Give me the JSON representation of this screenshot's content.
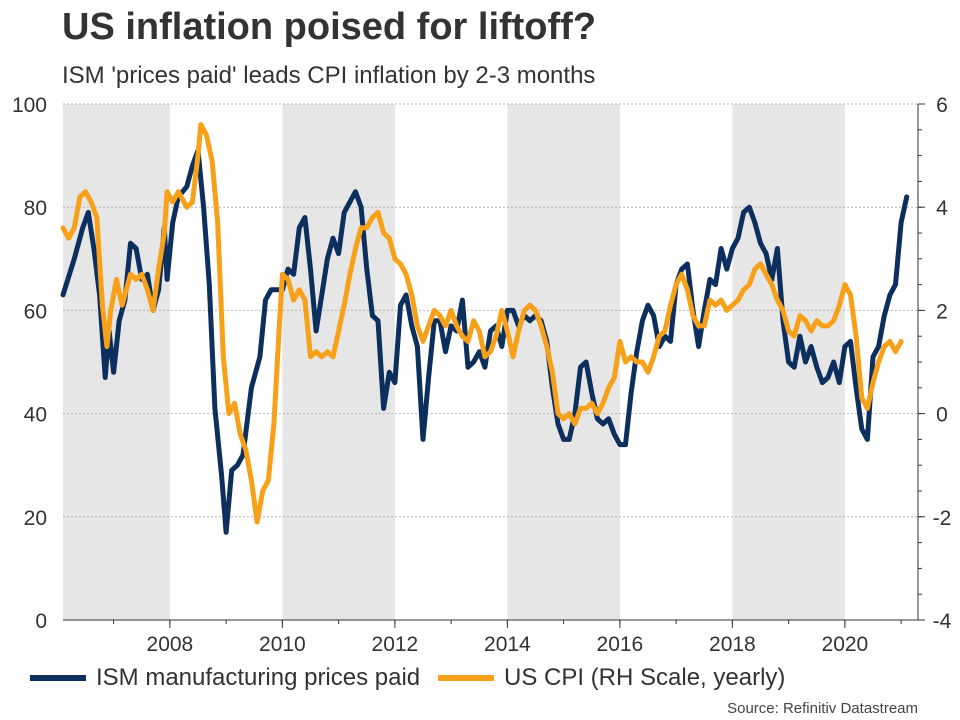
{
  "title": "US inflation poised for liftoff?",
  "subtitle": "ISM 'prices paid' leads CPI inflation by 2-3 months",
  "source": "Source: Refinitiv Datastream",
  "chart_data": {
    "type": "line",
    "x_ticks": [
      "2008",
      "2010",
      "2012",
      "2014",
      "2016",
      "2018",
      "2020"
    ],
    "y_left_ticks": [
      "0",
      "20",
      "40",
      "60",
      "80",
      "100"
    ],
    "y_right_ticks": [
      "-4",
      "-2",
      "0",
      "2",
      "4",
      "6"
    ],
    "ylim_left": [
      0,
      100
    ],
    "ylim_right": [
      -4,
      6
    ],
    "xlim": [
      2006.1,
      2021.3
    ],
    "grid": true,
    "legend_position": "bottom",
    "shaded_periods": [
      [
        2006.1,
        2008.0
      ],
      [
        2010.0,
        2012.0
      ],
      [
        2014.0,
        2016.0
      ],
      [
        2018.0,
        2020.0
      ]
    ],
    "series": [
      {
        "name": "ISM manufacturing prices paid",
        "color": "#0d2f5e",
        "axis": "left",
        "points": [
          [
            2006.1,
            63
          ],
          [
            2006.3,
            70
          ],
          [
            2006.45,
            76
          ],
          [
            2006.55,
            79
          ],
          [
            2006.65,
            72
          ],
          [
            2006.75,
            63
          ],
          [
            2006.85,
            47
          ],
          [
            2006.92,
            56
          ],
          [
            2007.0,
            48
          ],
          [
            2007.1,
            58
          ],
          [
            2007.2,
            62
          ],
          [
            2007.3,
            73
          ],
          [
            2007.4,
            72
          ],
          [
            2007.5,
            66
          ],
          [
            2007.6,
            67
          ],
          [
            2007.7,
            60
          ],
          [
            2007.8,
            64
          ],
          [
            2007.9,
            76
          ],
          [
            2007.95,
            66
          ],
          [
            2008.05,
            77
          ],
          [
            2008.15,
            82
          ],
          [
            2008.3,
            84
          ],
          [
            2008.4,
            88
          ],
          [
            2008.5,
            91
          ],
          [
            2008.6,
            80
          ],
          [
            2008.7,
            65
          ],
          [
            2008.8,
            41
          ],
          [
            2008.92,
            28
          ],
          [
            2009.0,
            17
          ],
          [
            2009.1,
            29
          ],
          [
            2009.2,
            30
          ],
          [
            2009.3,
            32
          ],
          [
            2009.45,
            45
          ],
          [
            2009.6,
            51
          ],
          [
            2009.7,
            62
          ],
          [
            2009.8,
            64
          ],
          [
            2009.9,
            64
          ],
          [
            2010.0,
            64
          ],
          [
            2010.1,
            68
          ],
          [
            2010.2,
            67
          ],
          [
            2010.3,
            76
          ],
          [
            2010.4,
            78
          ],
          [
            2010.5,
            68
          ],
          [
            2010.6,
            56
          ],
          [
            2010.7,
            63
          ],
          [
            2010.8,
            70
          ],
          [
            2010.9,
            74
          ],
          [
            2011.0,
            71
          ],
          [
            2011.1,
            79
          ],
          [
            2011.2,
            81
          ],
          [
            2011.3,
            83
          ],
          [
            2011.4,
            80
          ],
          [
            2011.5,
            68
          ],
          [
            2011.6,
            59
          ],
          [
            2011.7,
            58
          ],
          [
            2011.8,
            41
          ],
          [
            2011.9,
            48
          ],
          [
            2012.0,
            46
          ],
          [
            2012.1,
            61
          ],
          [
            2012.2,
            63
          ],
          [
            2012.3,
            57
          ],
          [
            2012.4,
            53
          ],
          [
            2012.5,
            35
          ],
          [
            2012.6,
            47
          ],
          [
            2012.7,
            58
          ],
          [
            2012.8,
            58
          ],
          [
            2012.9,
            52
          ],
          [
            2013.0,
            57
          ],
          [
            2013.1,
            56
          ],
          [
            2013.2,
            62
          ],
          [
            2013.3,
            49
          ],
          [
            2013.4,
            50
          ],
          [
            2013.5,
            52
          ],
          [
            2013.6,
            49
          ],
          [
            2013.7,
            56
          ],
          [
            2013.8,
            57
          ],
          [
            2013.9,
            53
          ],
          [
            2014.0,
            60
          ],
          [
            2014.1,
            60
          ],
          [
            2014.2,
            57
          ],
          [
            2014.3,
            59
          ],
          [
            2014.4,
            58
          ],
          [
            2014.5,
            59
          ],
          [
            2014.6,
            58
          ],
          [
            2014.7,
            54
          ],
          [
            2014.8,
            45
          ],
          [
            2014.9,
            38
          ],
          [
            2015.0,
            35
          ],
          [
            2015.1,
            35
          ],
          [
            2015.2,
            40
          ],
          [
            2015.3,
            49
          ],
          [
            2015.4,
            50
          ],
          [
            2015.5,
            44
          ],
          [
            2015.6,
            39
          ],
          [
            2015.7,
            38
          ],
          [
            2015.8,
            39
          ],
          [
            2015.9,
            36
          ],
          [
            2016.0,
            34
          ],
          [
            2016.1,
            34
          ],
          [
            2016.2,
            44
          ],
          [
            2016.3,
            52
          ],
          [
            2016.4,
            58
          ],
          [
            2016.5,
            61
          ],
          [
            2016.6,
            59
          ],
          [
            2016.7,
            53
          ],
          [
            2016.8,
            55
          ],
          [
            2016.9,
            54
          ],
          [
            2017.0,
            65
          ],
          [
            2017.1,
            68
          ],
          [
            2017.2,
            69
          ],
          [
            2017.3,
            60
          ],
          [
            2017.4,
            53
          ],
          [
            2017.5,
            60
          ],
          [
            2017.6,
            66
          ],
          [
            2017.7,
            65
          ],
          [
            2017.8,
            72
          ],
          [
            2017.9,
            68
          ],
          [
            2018.0,
            72
          ],
          [
            2018.1,
            74
          ],
          [
            2018.2,
            79
          ],
          [
            2018.3,
            80
          ],
          [
            2018.4,
            77
          ],
          [
            2018.5,
            73
          ],
          [
            2018.6,
            71
          ],
          [
            2018.7,
            66
          ],
          [
            2018.8,
            72
          ],
          [
            2018.9,
            58
          ],
          [
            2019.0,
            50
          ],
          [
            2019.1,
            49
          ],
          [
            2019.2,
            55
          ],
          [
            2019.3,
            50
          ],
          [
            2019.4,
            53
          ],
          [
            2019.5,
            49
          ],
          [
            2019.6,
            46
          ],
          [
            2019.7,
            47
          ],
          [
            2019.8,
            50
          ],
          [
            2019.9,
            46
          ],
          [
            2020.0,
            53
          ],
          [
            2020.1,
            54
          ],
          [
            2020.2,
            45
          ],
          [
            2020.3,
            37
          ],
          [
            2020.4,
            35
          ],
          [
            2020.5,
            51
          ],
          [
            2020.6,
            53
          ],
          [
            2020.7,
            59
          ],
          [
            2020.8,
            63
          ],
          [
            2020.9,
            65
          ],
          [
            2021.0,
            77
          ],
          [
            2021.1,
            82
          ]
        ]
      },
      {
        "name": "US CPI (RH Scale, yearly)",
        "color": "#f7a11a",
        "axis": "right",
        "points": [
          [
            2006.1,
            3.6
          ],
          [
            2006.2,
            3.4
          ],
          [
            2006.3,
            3.6
          ],
          [
            2006.4,
            4.2
          ],
          [
            2006.5,
            4.3
          ],
          [
            2006.6,
            4.1
          ],
          [
            2006.7,
            3.8
          ],
          [
            2006.8,
            2.1
          ],
          [
            2006.88,
            1.3
          ],
          [
            2006.95,
            2.0
          ],
          [
            2007.05,
            2.6
          ],
          [
            2007.15,
            2.1
          ],
          [
            2007.3,
            2.7
          ],
          [
            2007.4,
            2.6
          ],
          [
            2007.5,
            2.7
          ],
          [
            2007.6,
            2.4
          ],
          [
            2007.7,
            2.0
          ],
          [
            2007.8,
            2.8
          ],
          [
            2007.9,
            3.5
          ],
          [
            2007.95,
            4.3
          ],
          [
            2008.05,
            4.1
          ],
          [
            2008.15,
            4.3
          ],
          [
            2008.3,
            4.0
          ],
          [
            2008.4,
            4.1
          ],
          [
            2008.5,
            5.0
          ],
          [
            2008.55,
            5.6
          ],
          [
            2008.65,
            5.4
          ],
          [
            2008.75,
            4.9
          ],
          [
            2008.85,
            3.7
          ],
          [
            2008.95,
            1.1
          ],
          [
            2009.05,
            0.0
          ],
          [
            2009.15,
            0.2
          ],
          [
            2009.25,
            -0.4
          ],
          [
            2009.35,
            -0.7
          ],
          [
            2009.45,
            -1.3
          ],
          [
            2009.55,
            -2.1
          ],
          [
            2009.65,
            -1.5
          ],
          [
            2009.75,
            -1.3
          ],
          [
            2009.85,
            -0.2
          ],
          [
            2009.95,
            1.8
          ],
          [
            2010.0,
            2.7
          ],
          [
            2010.1,
            2.6
          ],
          [
            2010.2,
            2.2
          ],
          [
            2010.3,
            2.4
          ],
          [
            2010.4,
            2.2
          ],
          [
            2010.5,
            1.1
          ],
          [
            2010.6,
            1.2
          ],
          [
            2010.7,
            1.1
          ],
          [
            2010.8,
            1.2
          ],
          [
            2010.9,
            1.1
          ],
          [
            2011.0,
            1.6
          ],
          [
            2011.1,
            2.1
          ],
          [
            2011.2,
            2.7
          ],
          [
            2011.3,
            3.2
          ],
          [
            2011.4,
            3.6
          ],
          [
            2011.5,
            3.6
          ],
          [
            2011.6,
            3.8
          ],
          [
            2011.7,
            3.9
          ],
          [
            2011.8,
            3.5
          ],
          [
            2011.9,
            3.4
          ],
          [
            2012.0,
            3.0
          ],
          [
            2012.1,
            2.9
          ],
          [
            2012.2,
            2.7
          ],
          [
            2012.3,
            2.3
          ],
          [
            2012.4,
            1.7
          ],
          [
            2012.5,
            1.4
          ],
          [
            2012.6,
            1.7
          ],
          [
            2012.7,
            2.0
          ],
          [
            2012.8,
            1.9
          ],
          [
            2012.9,
            1.7
          ],
          [
            2013.0,
            2.0
          ],
          [
            2013.1,
            1.7
          ],
          [
            2013.2,
            1.5
          ],
          [
            2013.3,
            1.4
          ],
          [
            2013.4,
            1.8
          ],
          [
            2013.5,
            1.6
          ],
          [
            2013.6,
            1.1
          ],
          [
            2013.7,
            1.2
          ],
          [
            2013.8,
            1.5
          ],
          [
            2013.9,
            2.0
          ],
          [
            2014.0,
            1.6
          ],
          [
            2014.1,
            1.1
          ],
          [
            2014.2,
            1.6
          ],
          [
            2014.3,
            2.0
          ],
          [
            2014.4,
            2.1
          ],
          [
            2014.5,
            2.0
          ],
          [
            2014.6,
            1.7
          ],
          [
            2014.7,
            1.3
          ],
          [
            2014.8,
            0.8
          ],
          [
            2014.9,
            0.0
          ],
          [
            2015.0,
            -0.1
          ],
          [
            2015.1,
            0.0
          ],
          [
            2015.2,
            -0.2
          ],
          [
            2015.3,
            0.1
          ],
          [
            2015.4,
            0.1
          ],
          [
            2015.5,
            0.2
          ],
          [
            2015.6,
            0.0
          ],
          [
            2015.7,
            0.2
          ],
          [
            2015.8,
            0.5
          ],
          [
            2015.9,
            0.7
          ],
          [
            2016.0,
            1.4
          ],
          [
            2016.1,
            1.0
          ],
          [
            2016.2,
            1.1
          ],
          [
            2016.3,
            1.0
          ],
          [
            2016.4,
            1.0
          ],
          [
            2016.5,
            0.8
          ],
          [
            2016.6,
            1.1
          ],
          [
            2016.7,
            1.5
          ],
          [
            2016.8,
            1.6
          ],
          [
            2016.9,
            2.1
          ],
          [
            2017.0,
            2.5
          ],
          [
            2017.1,
            2.7
          ],
          [
            2017.2,
            2.4
          ],
          [
            2017.3,
            1.9
          ],
          [
            2017.4,
            1.7
          ],
          [
            2017.5,
            1.7
          ],
          [
            2017.6,
            2.2
          ],
          [
            2017.7,
            2.1
          ],
          [
            2017.8,
            2.2
          ],
          [
            2017.9,
            2.0
          ],
          [
            2018.0,
            2.1
          ],
          [
            2018.1,
            2.2
          ],
          [
            2018.2,
            2.4
          ],
          [
            2018.3,
            2.5
          ],
          [
            2018.4,
            2.8
          ],
          [
            2018.5,
            2.9
          ],
          [
            2018.6,
            2.7
          ],
          [
            2018.7,
            2.5
          ],
          [
            2018.8,
            2.2
          ],
          [
            2018.9,
            2.0
          ],
          [
            2019.0,
            1.6
          ],
          [
            2019.1,
            1.5
          ],
          [
            2019.2,
            1.9
          ],
          [
            2019.3,
            1.8
          ],
          [
            2019.4,
            1.6
          ],
          [
            2019.5,
            1.8
          ],
          [
            2019.6,
            1.7
          ],
          [
            2019.7,
            1.7
          ],
          [
            2019.8,
            1.8
          ],
          [
            2019.9,
            2.1
          ],
          [
            2020.0,
            2.5
          ],
          [
            2020.1,
            2.3
          ],
          [
            2020.2,
            1.5
          ],
          [
            2020.3,
            0.3
          ],
          [
            2020.4,
            0.1
          ],
          [
            2020.5,
            0.6
          ],
          [
            2020.6,
            1.0
          ],
          [
            2020.7,
            1.3
          ],
          [
            2020.8,
            1.4
          ],
          [
            2020.9,
            1.2
          ],
          [
            2021.0,
            1.4
          ]
        ]
      }
    ]
  }
}
